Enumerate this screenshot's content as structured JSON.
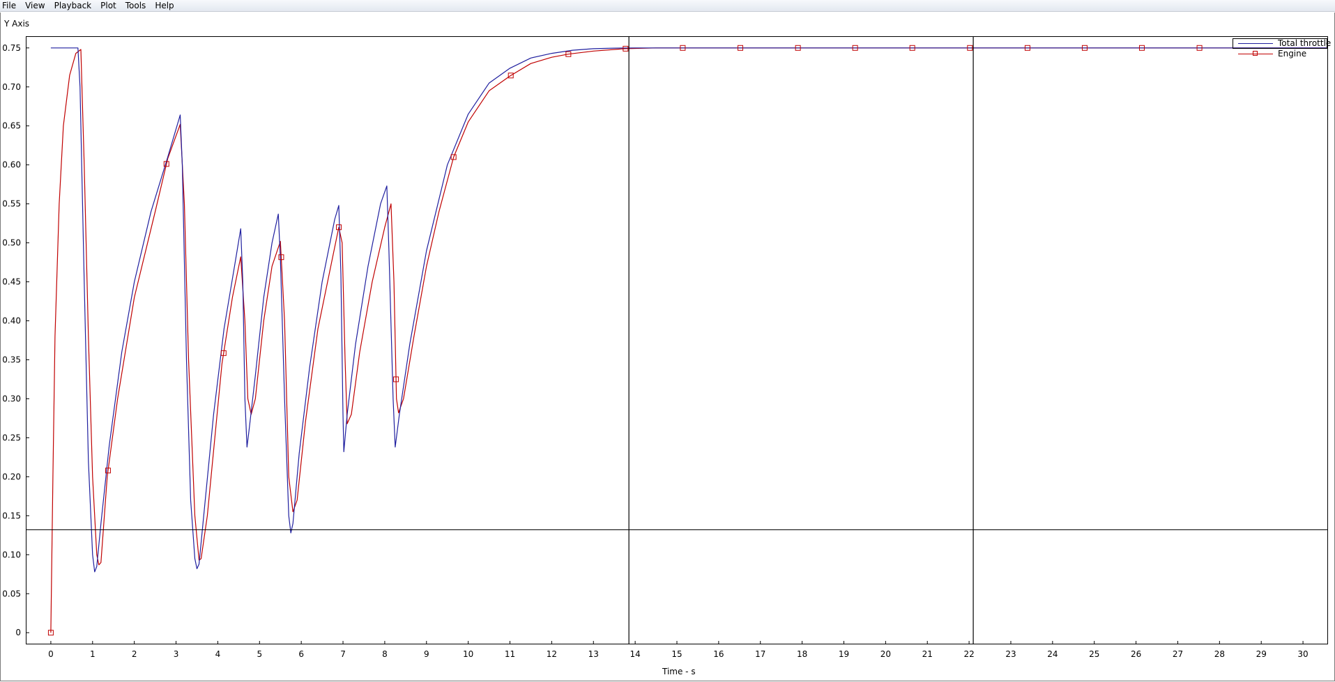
{
  "menu": {
    "items": [
      {
        "label": "File"
      },
      {
        "label": "View"
      },
      {
        "label": "Playback"
      },
      {
        "label": "Plot"
      },
      {
        "label": "Tools"
      },
      {
        "label": "Help"
      }
    ]
  },
  "chart_data": {
    "type": "line",
    "ylabel": "Y Axis",
    "xlabel": "Time - s",
    "xlim": [
      -0.6,
      30.6
    ],
    "ylim": [
      -0.015,
      0.765
    ],
    "xticks": [
      "0",
      "1",
      "2",
      "3",
      "4",
      "5",
      "6",
      "7",
      "8",
      "9",
      "10",
      "11",
      "12",
      "13",
      "14",
      "15",
      "16",
      "17",
      "18",
      "19",
      "20",
      "21",
      "22",
      "23",
      "24",
      "25",
      "26",
      "27",
      "28",
      "29",
      "30"
    ],
    "yticks": [
      "0",
      "0.05",
      "0.10",
      "0.15",
      "0.20",
      "0.25",
      "0.30",
      "0.35",
      "0.40",
      "0.45",
      "0.50",
      "0.55",
      "0.60",
      "0.65",
      "0.70",
      "0.75"
    ],
    "legend_position": "top-right",
    "cursor_lines": {
      "vertical_x": [
        13.85,
        22.1
      ],
      "horizontal_y": 0.132
    },
    "colors": {
      "total_throttle": "#1f1f9f",
      "engine": "#c00000",
      "cursor": "#000000"
    },
    "series": [
      {
        "name": "Total throttle",
        "points": [
          [
            0,
            0.75
          ],
          [
            0.65,
            0.75
          ],
          [
            0.7,
            0.7
          ],
          [
            0.8,
            0.45
          ],
          [
            0.9,
            0.22
          ],
          [
            1.0,
            0.1
          ],
          [
            1.05,
            0.078
          ],
          [
            1.1,
            0.085
          ],
          [
            1.2,
            0.14
          ],
          [
            1.4,
            0.24
          ],
          [
            1.7,
            0.36
          ],
          [
            2.0,
            0.45
          ],
          [
            2.4,
            0.54
          ],
          [
            2.8,
            0.61
          ],
          [
            3.1,
            0.664
          ],
          [
            3.15,
            0.6
          ],
          [
            3.25,
            0.35
          ],
          [
            3.35,
            0.17
          ],
          [
            3.45,
            0.095
          ],
          [
            3.5,
            0.082
          ],
          [
            3.55,
            0.088
          ],
          [
            3.7,
            0.17
          ],
          [
            3.9,
            0.28
          ],
          [
            4.15,
            0.39
          ],
          [
            4.4,
            0.47
          ],
          [
            4.55,
            0.518
          ],
          [
            4.6,
            0.45
          ],
          [
            4.65,
            0.3
          ],
          [
            4.7,
            0.238
          ],
          [
            4.75,
            0.26
          ],
          [
            4.9,
            0.33
          ],
          [
            5.1,
            0.43
          ],
          [
            5.3,
            0.5
          ],
          [
            5.45,
            0.537
          ],
          [
            5.5,
            0.48
          ],
          [
            5.6,
            0.3
          ],
          [
            5.7,
            0.15
          ],
          [
            5.75,
            0.128
          ],
          [
            5.8,
            0.14
          ],
          [
            5.95,
            0.23
          ],
          [
            6.2,
            0.34
          ],
          [
            6.5,
            0.45
          ],
          [
            6.8,
            0.53
          ],
          [
            6.9,
            0.548
          ],
          [
            6.95,
            0.46
          ],
          [
            7.0,
            0.28
          ],
          [
            7.02,
            0.232
          ],
          [
            7.1,
            0.28
          ],
          [
            7.3,
            0.37
          ],
          [
            7.6,
            0.47
          ],
          [
            7.9,
            0.55
          ],
          [
            8.05,
            0.573
          ],
          [
            8.1,
            0.49
          ],
          [
            8.2,
            0.3
          ],
          [
            8.25,
            0.238
          ],
          [
            8.35,
            0.28
          ],
          [
            8.6,
            0.37
          ],
          [
            9.0,
            0.49
          ],
          [
            9.5,
            0.6
          ],
          [
            10.0,
            0.665
          ],
          [
            10.5,
            0.705
          ],
          [
            11.0,
            0.724
          ],
          [
            11.5,
            0.737
          ],
          [
            12.0,
            0.743
          ],
          [
            12.5,
            0.747
          ],
          [
            13.0,
            0.749
          ],
          [
            13.5,
            0.7497
          ],
          [
            14.0,
            0.75
          ],
          [
            30.6,
            0.75
          ]
        ]
      },
      {
        "name": "Engine",
        "points": [
          [
            0,
            0
          ],
          [
            0.05,
            0.2
          ],
          [
            0.1,
            0.38
          ],
          [
            0.2,
            0.55
          ],
          [
            0.3,
            0.65
          ],
          [
            0.45,
            0.715
          ],
          [
            0.6,
            0.743
          ],
          [
            0.72,
            0.748
          ],
          [
            0.8,
            0.6
          ],
          [
            0.9,
            0.38
          ],
          [
            1.0,
            0.2
          ],
          [
            1.1,
            0.1
          ],
          [
            1.15,
            0.087
          ],
          [
            1.2,
            0.09
          ],
          [
            1.35,
            0.2
          ],
          [
            1.6,
            0.3
          ],
          [
            2.0,
            0.43
          ],
          [
            2.5,
            0.54
          ],
          [
            2.8,
            0.608
          ],
          [
            3.1,
            0.652
          ],
          [
            3.2,
            0.55
          ],
          [
            3.3,
            0.35
          ],
          [
            3.45,
            0.15
          ],
          [
            3.55,
            0.093
          ],
          [
            3.6,
            0.095
          ],
          [
            3.75,
            0.15
          ],
          [
            4.1,
            0.345
          ],
          [
            4.35,
            0.43
          ],
          [
            4.55,
            0.482
          ],
          [
            4.65,
            0.4
          ],
          [
            4.72,
            0.3
          ],
          [
            4.8,
            0.28
          ],
          [
            4.9,
            0.3
          ],
          [
            5.1,
            0.4
          ],
          [
            5.3,
            0.47
          ],
          [
            5.5,
            0.502
          ],
          [
            5.6,
            0.4
          ],
          [
            5.7,
            0.2
          ],
          [
            5.8,
            0.155
          ],
          [
            5.9,
            0.17
          ],
          [
            6.1,
            0.27
          ],
          [
            6.4,
            0.39
          ],
          [
            6.9,
            0.52
          ],
          [
            6.98,
            0.5
          ],
          [
            7.05,
            0.35
          ],
          [
            7.1,
            0.268
          ],
          [
            7.2,
            0.28
          ],
          [
            7.4,
            0.36
          ],
          [
            7.7,
            0.45
          ],
          [
            8.0,
            0.52
          ],
          [
            8.15,
            0.55
          ],
          [
            8.22,
            0.45
          ],
          [
            8.28,
            0.3
          ],
          [
            8.33,
            0.282
          ],
          [
            8.45,
            0.3
          ],
          [
            8.7,
            0.38
          ],
          [
            9.0,
            0.47
          ],
          [
            9.3,
            0.54
          ],
          [
            9.65,
            0.61
          ],
          [
            10.0,
            0.655
          ],
          [
            10.5,
            0.695
          ],
          [
            11.0,
            0.714
          ],
          [
            11.5,
            0.73
          ],
          [
            12.0,
            0.738
          ],
          [
            12.4,
            0.742
          ],
          [
            13.0,
            0.746
          ],
          [
            13.75,
            0.749
          ],
          [
            14.5,
            0.75
          ],
          [
            30.6,
            0.75
          ]
        ],
        "markers_x": [
          0,
          1.37,
          2.77,
          4.14,
          5.52,
          6.9,
          8.27,
          9.65,
          11.02,
          12.4,
          13.77,
          15.14,
          16.52,
          17.9,
          19.27,
          20.64,
          22.02,
          23.4,
          24.77,
          26.14,
          27.52
        ]
      }
    ]
  }
}
